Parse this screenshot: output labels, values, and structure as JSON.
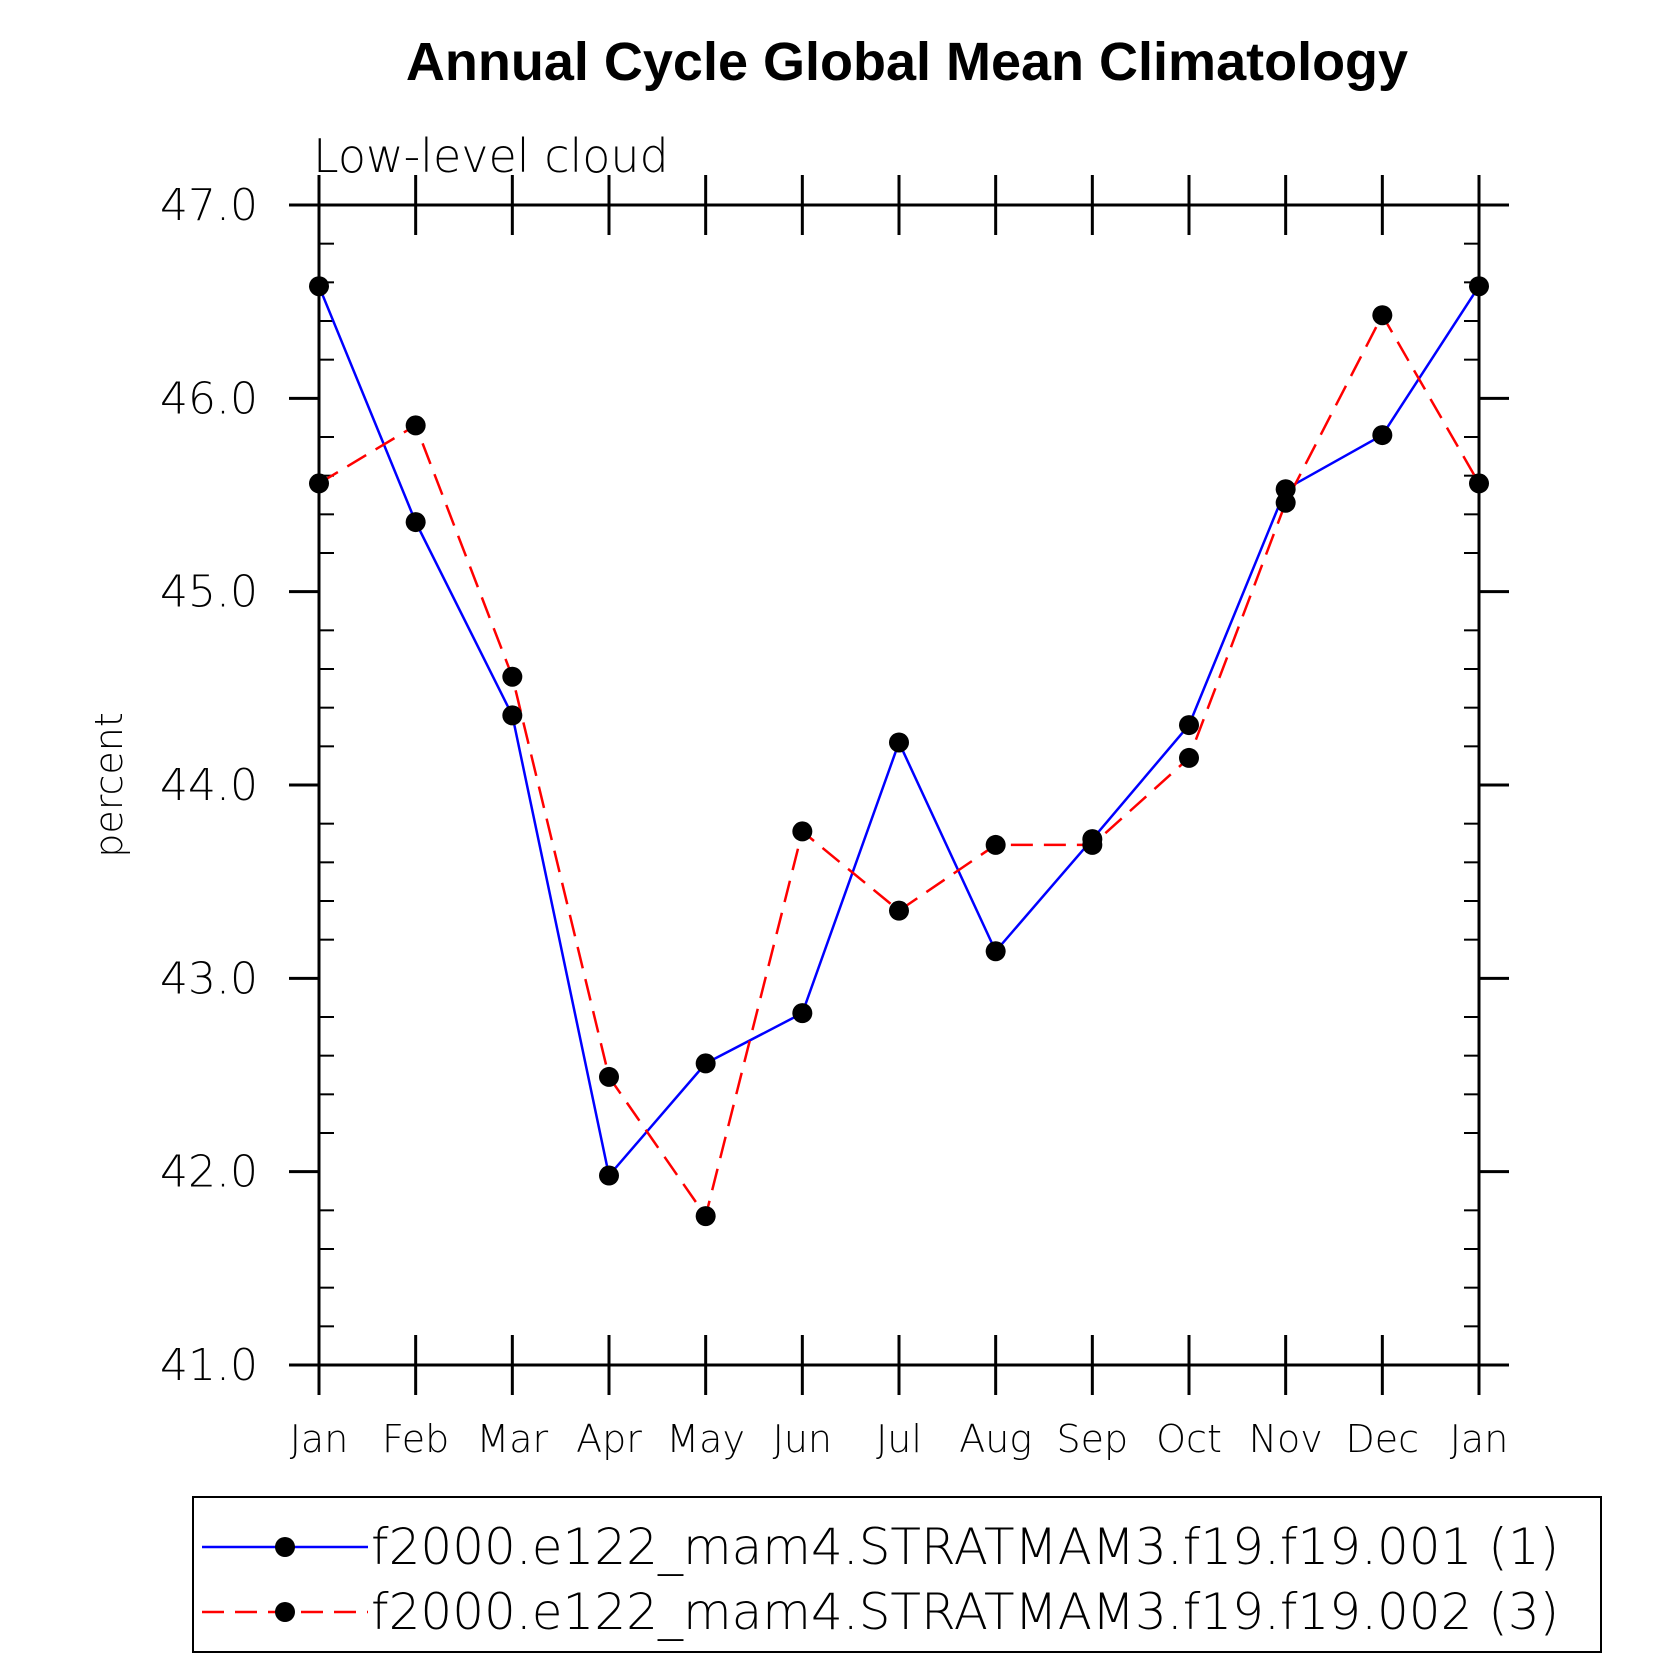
{
  "chart_data": {
    "type": "line",
    "title": "Annual Cycle Global Mean Climatology",
    "subtitle": "Low-level cloud",
    "xlabel": "",
    "ylabel": "percent",
    "ylim": [
      41.0,
      47.0
    ],
    "yticks": [
      "41.0",
      "42.0",
      "43.0",
      "44.0",
      "45.0",
      "46.0",
      "47.0"
    ],
    "categories": [
      "Jan",
      "Feb",
      "Mar",
      "Apr",
      "May",
      "Jun",
      "Jul",
      "Aug",
      "Sep",
      "Oct",
      "Nov",
      "Dec",
      "Jan"
    ],
    "series": [
      {
        "name": "f2000.e122_mam4.STRATMAM3.f19.f19.001 (1)",
        "color": "#0000ff",
        "dash": "solid",
        "marker": "filled-circle",
        "values": [
          46.58,
          45.36,
          44.36,
          41.98,
          42.56,
          42.82,
          44.22,
          43.14,
          43.72,
          44.31,
          45.53,
          45.81,
          46.58
        ]
      },
      {
        "name": "f2000.e122_mam4.STRATMAM3.f19.f19.002 (3)",
        "color": "#ff0000",
        "dash": "dashed",
        "marker": "filled-circle",
        "values": [
          45.56,
          45.86,
          44.56,
          42.49,
          41.77,
          43.76,
          43.35,
          43.69,
          43.69,
          44.14,
          45.46,
          46.43,
          45.56
        ]
      }
    ],
    "legend_position": "bottom"
  }
}
